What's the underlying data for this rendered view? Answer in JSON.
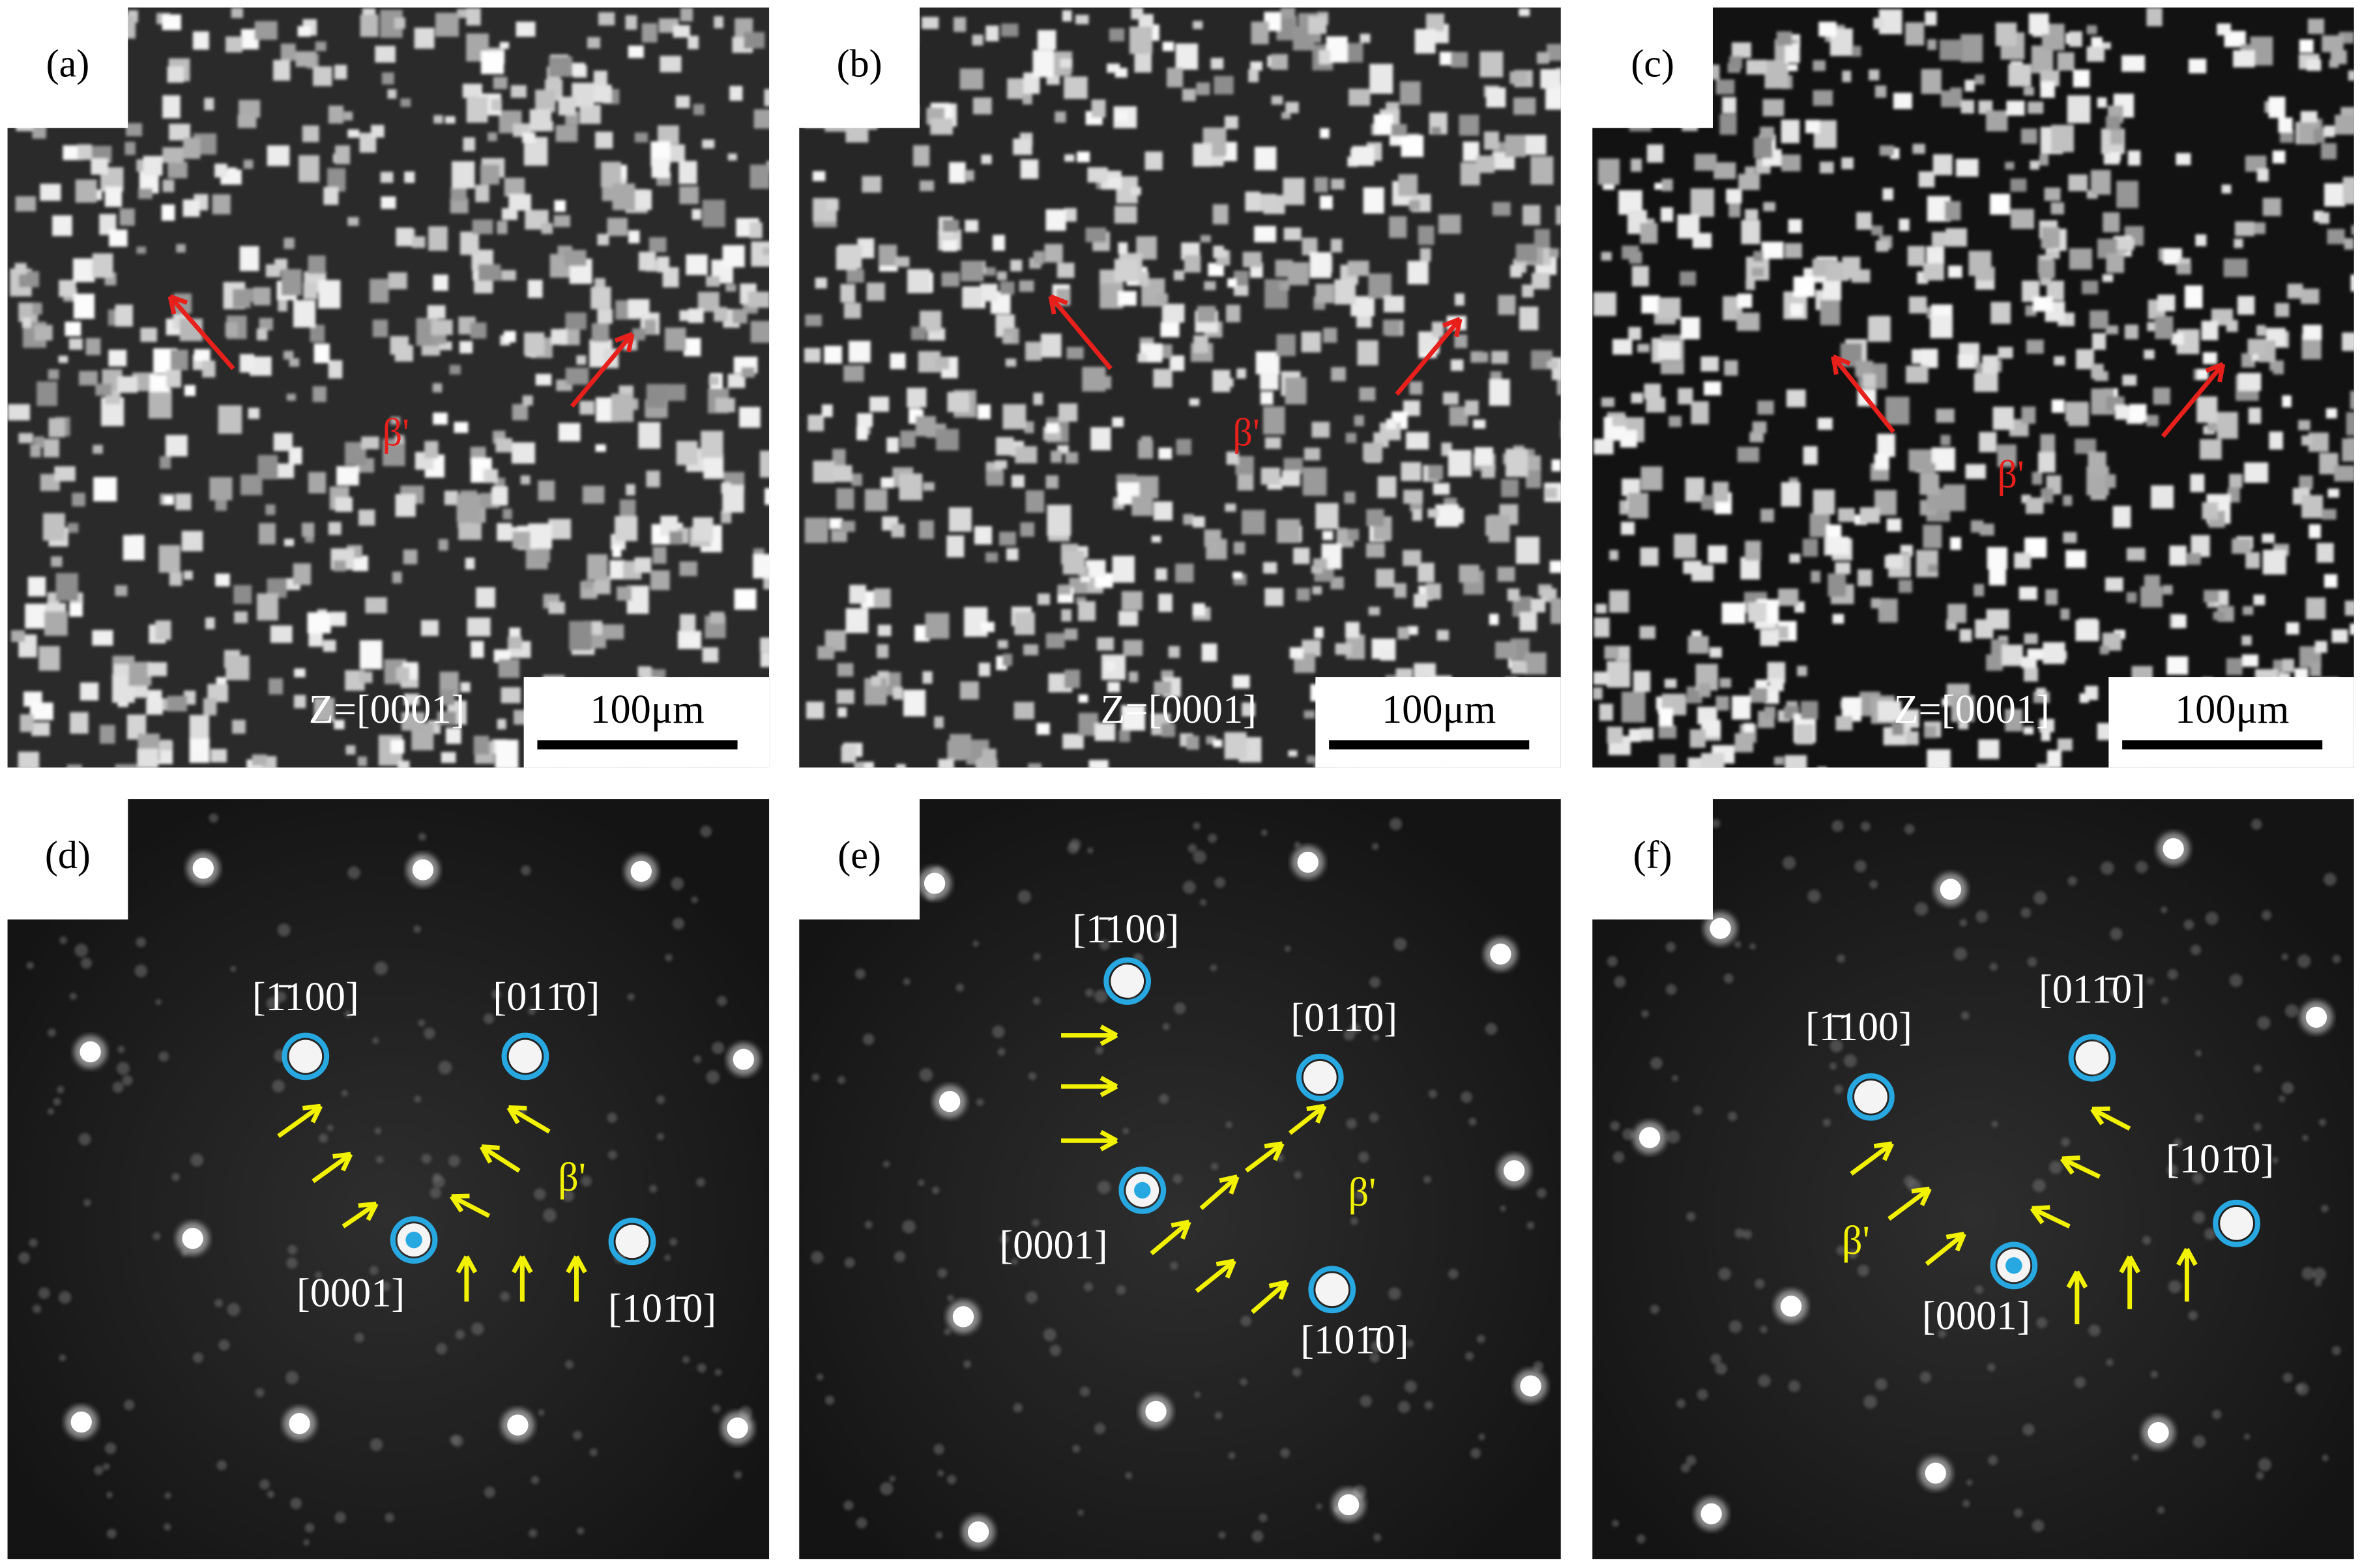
{
  "micrographs": [
    {
      "label": "(a)",
      "zone_axis": "Z=[0001]",
      "scale_bar": "100μm",
      "phase": "β'"
    },
    {
      "label": "(b)",
      "zone_axis": "Z=[0001]",
      "scale_bar": "100μm",
      "phase": "β'"
    },
    {
      "label": "(c)",
      "zone_axis": "Z=[0001]",
      "scale_bar": "100μm",
      "phase": "β'"
    }
  ],
  "diffraction": [
    {
      "label": "(d)",
      "spots": [
        "[1̄100]",
        "[011̄0]",
        "[0001]",
        "[101̄0]"
      ],
      "phase": "β'"
    },
    {
      "label": "(e)",
      "spots": [
        "[1̄100]",
        "[011̄0]",
        "[0001]",
        "[101̄0]"
      ],
      "phase": "β'"
    },
    {
      "label": "(f)",
      "spots": [
        "[1̄100]",
        "[011̄0]",
        "[0001]",
        "[101̄0]"
      ],
      "phase": "β'"
    }
  ]
}
